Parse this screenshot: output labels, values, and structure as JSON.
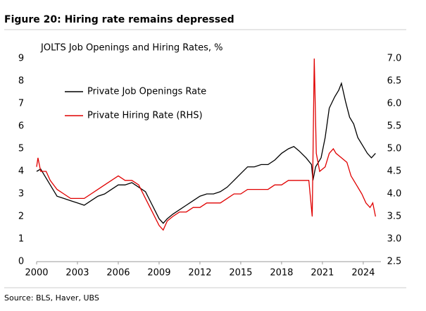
{
  "chart_data": {
    "type": "line",
    "title": "Figure 20: Hiring rate remains depressed",
    "subtitle": "JOLTS Job Openings and Hiring Rates, %",
    "source": "Source: BLS, Haver, UBS",
    "xlim": [
      2000,
      2025.3
    ],
    "xticks": [
      2000,
      2003,
      2006,
      2009,
      2012,
      2015,
      2018,
      2021,
      2024
    ],
    "ylim": [
      0,
      9
    ],
    "yticks": [
      0,
      1,
      2,
      3,
      4,
      5,
      6,
      7,
      8,
      9
    ],
    "y2lim": [
      2.5,
      7.0
    ],
    "y2ticks": [
      {
        "value": 2.5,
        "label": "2.5"
      },
      {
        "value": 3,
        "label": "3.0"
      },
      {
        "value": 3.5,
        "label": "3.5"
      },
      {
        "value": 4,
        "label": "4.0"
      },
      {
        "value": 4.5,
        "label": "4.5"
      },
      {
        "value": 5,
        "label": "5.0"
      },
      {
        "value": 5.5,
        "label": "5.5"
      },
      {
        "value": 6,
        "label": "6.0"
      },
      {
        "value": 6.5,
        "label": "6.5"
      },
      {
        "value": 7,
        "label": "7.0"
      }
    ],
    "grid": false,
    "series": [
      {
        "name": "Private Job Openings Rate",
        "color": "#000000",
        "x": [
          2000,
          2000.3,
          2000.6,
          2001,
          2001.5,
          2002,
          2002.5,
          2003,
          2003.5,
          2004,
          2004.5,
          2005,
          2005.5,
          2006,
          2006.5,
          2007,
          2007.5,
          2008,
          2008.5,
          2009,
          2009.3,
          2009.6,
          2010,
          2010.5,
          2011,
          2011.5,
          2012,
          2012.5,
          2013,
          2013.5,
          2014,
          2014.5,
          2015,
          2015.5,
          2016,
          2016.5,
          2017,
          2017.5,
          2018,
          2018.5,
          2018.9,
          2019.3,
          2019.8,
          2020.2,
          2020.3,
          2020.5,
          2020.9,
          2021.2,
          2021.5,
          2021.9,
          2022.2,
          2022.4,
          2022.7,
          2023,
          2023.3,
          2023.6,
          2024,
          2024.3,
          2024.6,
          2024.9
        ],
        "values": [
          4.0,
          4.1,
          3.8,
          3.4,
          2.9,
          2.8,
          2.7,
          2.6,
          2.5,
          2.7,
          2.9,
          3.0,
          3.2,
          3.4,
          3.4,
          3.5,
          3.3,
          3.1,
          2.5,
          1.9,
          1.7,
          1.9,
          2.1,
          2.3,
          2.5,
          2.7,
          2.9,
          3.0,
          3.0,
          3.1,
          3.3,
          3.6,
          3.9,
          4.2,
          4.2,
          4.3,
          4.3,
          4.5,
          4.8,
          5.0,
          5.1,
          4.9,
          4.6,
          4.3,
          3.6,
          4.2,
          4.6,
          5.5,
          6.8,
          7.3,
          7.6,
          7.9,
          7.1,
          6.4,
          6.1,
          5.5,
          5.1,
          4.8,
          4.6,
          4.8
        ]
      },
      {
        "name": "Private Hiring Rate (RHS)",
        "color": "#e00000",
        "axis": "y2",
        "x": [
          2000,
          2000.1,
          2000.3,
          2000.7,
          2001,
          2001.5,
          2002,
          2002.5,
          2003,
          2003.5,
          2004,
          2004.5,
          2005,
          2005.5,
          2006,
          2006.5,
          2007,
          2007.5,
          2008,
          2008.5,
          2009,
          2009.3,
          2009.6,
          2010,
          2010.5,
          2011,
          2011.5,
          2012,
          2012.5,
          2013,
          2013.5,
          2014,
          2014.5,
          2015,
          2015.5,
          2016,
          2016.5,
          2017,
          2017.5,
          2018,
          2018.5,
          2019,
          2019.5,
          2020,
          2020.25,
          2020.4,
          2020.55,
          2020.8,
          2021.2,
          2021.5,
          2021.8,
          2022,
          2022.4,
          2022.8,
          2023.1,
          2023.5,
          2023.9,
          2024.2,
          2024.5,
          2024.7,
          2024.9
        ],
        "values": [
          4.6,
          4.8,
          4.5,
          4.5,
          4.3,
          4.1,
          4.0,
          3.9,
          3.9,
          3.9,
          4.0,
          4.1,
          4.2,
          4.3,
          4.4,
          4.3,
          4.3,
          4.2,
          3.9,
          3.6,
          3.3,
          3.2,
          3.4,
          3.5,
          3.6,
          3.6,
          3.7,
          3.7,
          3.8,
          3.8,
          3.8,
          3.9,
          4.0,
          4.0,
          4.1,
          4.1,
          4.1,
          4.1,
          4.2,
          4.2,
          4.3,
          4.3,
          4.3,
          4.3,
          3.5,
          7.0,
          4.9,
          4.5,
          4.6,
          4.9,
          5.0,
          4.9,
          4.8,
          4.7,
          4.4,
          4.2,
          4.0,
          3.8,
          3.7,
          3.8,
          3.5
        ]
      }
    ]
  }
}
